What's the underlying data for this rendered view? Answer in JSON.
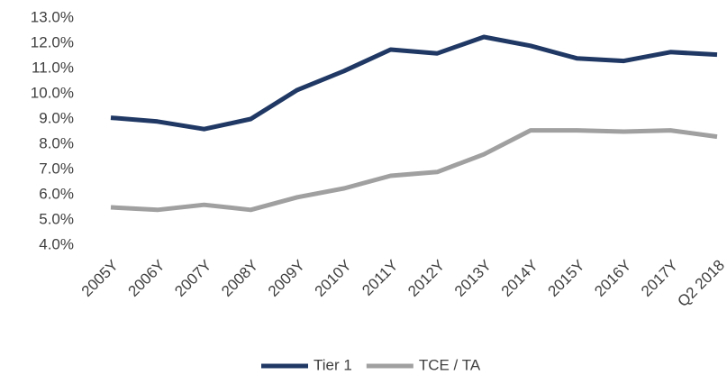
{
  "chart_data": {
    "type": "line",
    "categories": [
      "2005Y",
      "2006Y",
      "2007Y",
      "2008Y",
      "2009Y",
      "2010Y",
      "2011Y",
      "2012Y",
      "2013Y",
      "2014Y",
      "2015Y",
      "2016Y",
      "2017Y",
      "Q2 2018"
    ],
    "series": [
      {
        "name": "Tier 1",
        "color": "#1f3864",
        "values": [
          9.05,
          8.9,
          8.6,
          9.0,
          10.15,
          10.9,
          11.75,
          11.6,
          12.25,
          11.9,
          11.4,
          11.3,
          11.65,
          11.55
        ]
      },
      {
        "name": "TCE / TA",
        "color": "#a0a0a0",
        "values": [
          5.5,
          5.4,
          5.6,
          5.4,
          5.9,
          6.25,
          6.75,
          6.9,
          7.6,
          8.55,
          8.55,
          8.5,
          8.55,
          8.3
        ]
      }
    ],
    "ylim": [
      4,
      13
    ],
    "yticks": [
      {
        "value": 4,
        "label": "4.0%"
      },
      {
        "value": 5,
        "label": "5.0%"
      },
      {
        "value": 6,
        "label": "6.0%"
      },
      {
        "value": 7,
        "label": "7.0%"
      },
      {
        "value": 8,
        "label": "8.0%"
      },
      {
        "value": 9,
        "label": "9.0%"
      },
      {
        "value": 10,
        "label": "10.0%"
      },
      {
        "value": 11,
        "label": "11.0%"
      },
      {
        "value": 12,
        "label": "12.0%"
      },
      {
        "value": 13,
        "label": "13.0%"
      }
    ],
    "grid": false,
    "legend": "bottom"
  }
}
